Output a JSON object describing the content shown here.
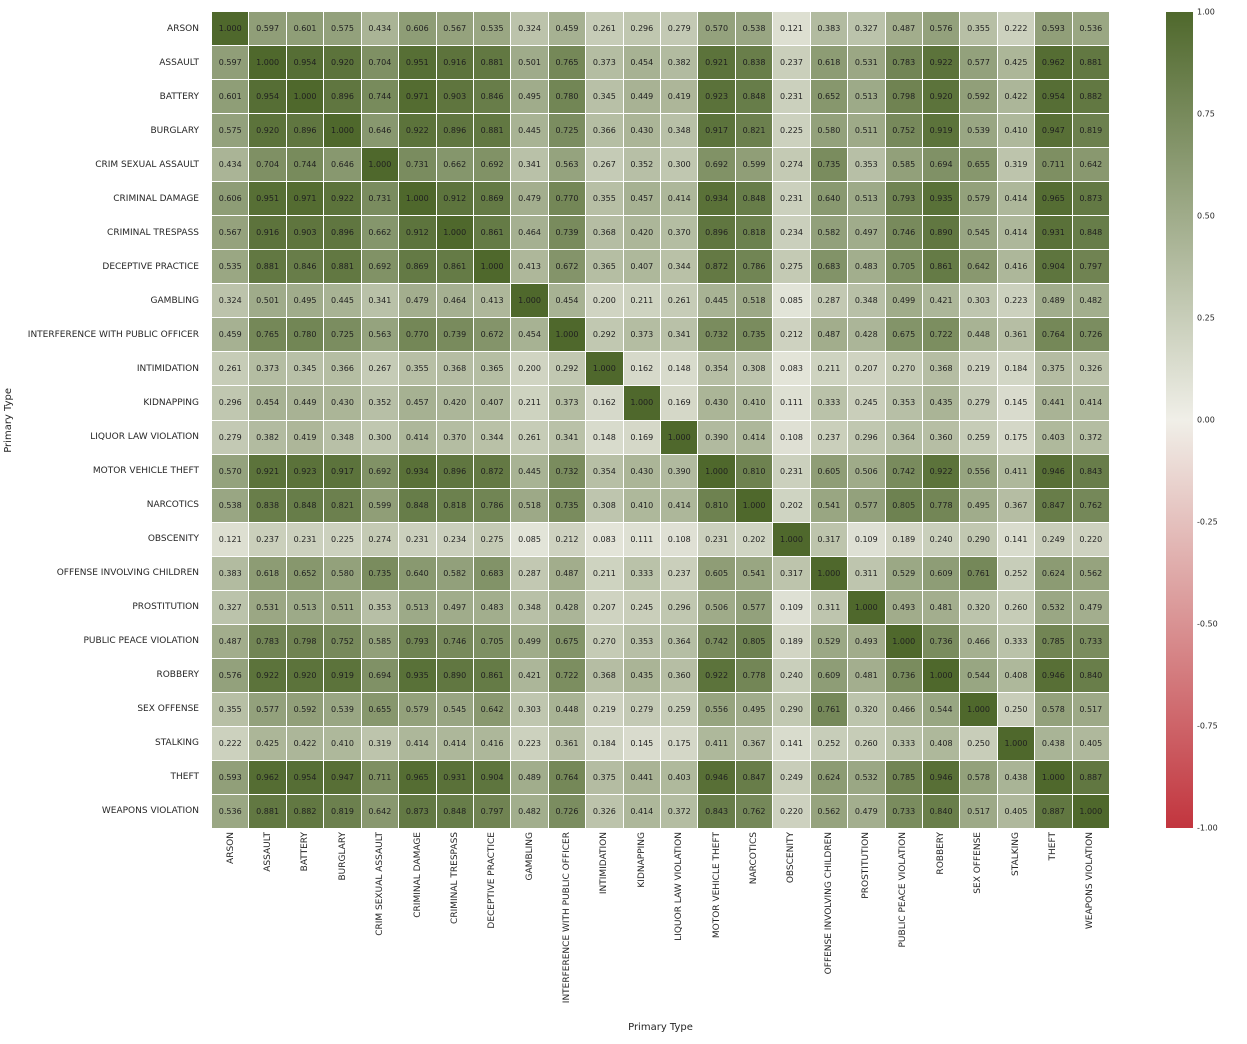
{
  "chart_data": {
    "type": "heatmap",
    "title": "",
    "xlabel": "Primary Type",
    "ylabel": "Primary Type",
    "vmin": -1.0,
    "vmax": 1.0,
    "legend_position": "right-colorbar",
    "grid": false,
    "colors": {
      "positive": "#4f682c",
      "mid": "#f0efe8",
      "negative": "#c2353e"
    },
    "colorbar": {
      "ticks": [
        "1.00",
        "0.75",
        "0.50",
        "0.25",
        "0.00",
        "-0.25",
        "-0.50",
        "-0.75",
        "-1.00"
      ]
    },
    "categories": [
      "ARSON",
      "ASSAULT",
      "BATTERY",
      "BURGLARY",
      "CRIM SEXUAL ASSAULT",
      "CRIMINAL DAMAGE",
      "CRIMINAL TRESPASS",
      "DECEPTIVE PRACTICE",
      "GAMBLING",
      "INTERFERENCE WITH PUBLIC OFFICER",
      "INTIMIDATION",
      "KIDNAPPING",
      "LIQUOR LAW VIOLATION",
      "MOTOR VEHICLE THEFT",
      "NARCOTICS",
      "OBSCENITY",
      "OFFENSE INVOLVING CHILDREN",
      "PROSTITUTION",
      "PUBLIC PEACE VIOLATION",
      "ROBBERY",
      "SEX OFFENSE",
      "STALKING",
      "THEFT",
      "WEAPONS VIOLATION"
    ],
    "matrix": [
      [
        1.0,
        0.597,
        0.601,
        0.575,
        0.434,
        0.606,
        0.567,
        0.535,
        0.324,
        0.459,
        0.261,
        0.296,
        0.279,
        0.57,
        0.538,
        0.121,
        0.383,
        0.327,
        0.487,
        0.576,
        0.355,
        0.222,
        0.593,
        0.536
      ],
      [
        0.597,
        1.0,
        0.954,
        0.92,
        0.704,
        0.951,
        0.916,
        0.881,
        0.501,
        0.765,
        0.373,
        0.454,
        0.382,
        0.921,
        0.838,
        0.237,
        0.618,
        0.531,
        0.783,
        0.922,
        0.577,
        0.425,
        0.962,
        0.881
      ],
      [
        0.601,
        0.954,
        1.0,
        0.896,
        0.744,
        0.971,
        0.903,
        0.846,
        0.495,
        0.78,
        0.345,
        0.449,
        0.419,
        0.923,
        0.848,
        0.231,
        0.652,
        0.513,
        0.798,
        0.92,
        0.592,
        0.422,
        0.954,
        0.882
      ],
      [
        0.575,
        0.92,
        0.896,
        1.0,
        0.646,
        0.922,
        0.896,
        0.881,
        0.445,
        0.725,
        0.366,
        0.43,
        0.348,
        0.917,
        0.821,
        0.225,
        0.58,
        0.511,
        0.752,
        0.919,
        0.539,
        0.41,
        0.947,
        0.819
      ],
      [
        0.434,
        0.704,
        0.744,
        0.646,
        1.0,
        0.731,
        0.662,
        0.692,
        0.341,
        0.563,
        0.267,
        0.352,
        0.3,
        0.692,
        0.599,
        0.274,
        0.735,
        0.353,
        0.585,
        0.694,
        0.655,
        0.319,
        0.711,
        0.642
      ],
      [
        0.606,
        0.951,
        0.971,
        0.922,
        0.731,
        1.0,
        0.912,
        0.869,
        0.479,
        0.77,
        0.355,
        0.457,
        0.414,
        0.934,
        0.848,
        0.231,
        0.64,
        0.513,
        0.793,
        0.935,
        0.579,
        0.414,
        0.965,
        0.873
      ],
      [
        0.567,
        0.916,
        0.903,
        0.896,
        0.662,
        0.912,
        1.0,
        0.861,
        0.464,
        0.739,
        0.368,
        0.42,
        0.37,
        0.896,
        0.818,
        0.234,
        0.582,
        0.497,
        0.746,
        0.89,
        0.545,
        0.414,
        0.931,
        0.848
      ],
      [
        0.535,
        0.881,
        0.846,
        0.881,
        0.692,
        0.869,
        0.861,
        1.0,
        0.413,
        0.672,
        0.365,
        0.407,
        0.344,
        0.872,
        0.786,
        0.275,
        0.683,
        0.483,
        0.705,
        0.861,
        0.642,
        0.416,
        0.904,
        0.797
      ],
      [
        0.324,
        0.501,
        0.495,
        0.445,
        0.341,
        0.479,
        0.464,
        0.413,
        1.0,
        0.454,
        0.2,
        0.211,
        0.261,
        0.445,
        0.518,
        0.085,
        0.287,
        0.348,
        0.499,
        0.421,
        0.303,
        0.223,
        0.489,
        0.482
      ],
      [
        0.459,
        0.765,
        0.78,
        0.725,
        0.563,
        0.77,
        0.739,
        0.672,
        0.454,
        1.0,
        0.292,
        0.373,
        0.341,
        0.732,
        0.735,
        0.212,
        0.487,
        0.428,
        0.675,
        0.722,
        0.448,
        0.361,
        0.764,
        0.726
      ],
      [
        0.261,
        0.373,
        0.345,
        0.366,
        0.267,
        0.355,
        0.368,
        0.365,
        0.2,
        0.292,
        1.0,
        0.162,
        0.148,
        0.354,
        0.308,
        0.083,
        0.211,
        0.207,
        0.27,
        0.368,
        0.219,
        0.184,
        0.375,
        0.326
      ],
      [
        0.296,
        0.454,
        0.449,
        0.43,
        0.352,
        0.457,
        0.42,
        0.407,
        0.211,
        0.373,
        0.162,
        1.0,
        0.169,
        0.43,
        0.41,
        0.111,
        0.333,
        0.245,
        0.353,
        0.435,
        0.279,
        0.145,
        0.441,
        0.414
      ],
      [
        0.279,
        0.382,
        0.419,
        0.348,
        0.3,
        0.414,
        0.37,
        0.344,
        0.261,
        0.341,
        0.148,
        0.169,
        1.0,
        0.39,
        0.414,
        0.108,
        0.237,
        0.296,
        0.364,
        0.36,
        0.259,
        0.175,
        0.403,
        0.372
      ],
      [
        0.57,
        0.921,
        0.923,
        0.917,
        0.692,
        0.934,
        0.896,
        0.872,
        0.445,
        0.732,
        0.354,
        0.43,
        0.39,
        1.0,
        0.81,
        0.231,
        0.605,
        0.506,
        0.742,
        0.922,
        0.556,
        0.411,
        0.946,
        0.843
      ],
      [
        0.538,
        0.838,
        0.848,
        0.821,
        0.599,
        0.848,
        0.818,
        0.786,
        0.518,
        0.735,
        0.308,
        0.41,
        0.414,
        0.81,
        1.0,
        0.202,
        0.541,
        0.577,
        0.805,
        0.778,
        0.495,
        0.367,
        0.847,
        0.762
      ],
      [
        0.121,
        0.237,
        0.231,
        0.225,
        0.274,
        0.231,
        0.234,
        0.275,
        0.085,
        0.212,
        0.083,
        0.111,
        0.108,
        0.231,
        0.202,
        1.0,
        0.317,
        0.109,
        0.189,
        0.24,
        0.29,
        0.141,
        0.249,
        0.22
      ],
      [
        0.383,
        0.618,
        0.652,
        0.58,
        0.735,
        0.64,
        0.582,
        0.683,
        0.287,
        0.487,
        0.211,
        0.333,
        0.237,
        0.605,
        0.541,
        0.317,
        1.0,
        0.311,
        0.529,
        0.609,
        0.761,
        0.252,
        0.624,
        0.562
      ],
      [
        0.327,
        0.531,
        0.513,
        0.511,
        0.353,
        0.513,
        0.497,
        0.483,
        0.348,
        0.428,
        0.207,
        0.245,
        0.296,
        0.506,
        0.577,
        0.109,
        0.311,
        1.0,
        0.493,
        0.481,
        0.32,
        0.26,
        0.532,
        0.479
      ],
      [
        0.487,
        0.783,
        0.798,
        0.752,
        0.585,
        0.793,
        0.746,
        0.705,
        0.499,
        0.675,
        0.27,
        0.353,
        0.364,
        0.742,
        0.805,
        0.189,
        0.529,
        0.493,
        1.0,
        0.736,
        0.466,
        0.333,
        0.785,
        0.733
      ],
      [
        0.576,
        0.922,
        0.92,
        0.919,
        0.694,
        0.935,
        0.89,
        0.861,
        0.421,
        0.722,
        0.368,
        0.435,
        0.36,
        0.922,
        0.778,
        0.24,
        0.609,
        0.481,
        0.736,
        1.0,
        0.544,
        0.408,
        0.946,
        0.84
      ],
      [
        0.355,
        0.577,
        0.592,
        0.539,
        0.655,
        0.579,
        0.545,
        0.642,
        0.303,
        0.448,
        0.219,
        0.279,
        0.259,
        0.556,
        0.495,
        0.29,
        0.761,
        0.32,
        0.466,
        0.544,
        1.0,
        0.25,
        0.578,
        0.517
      ],
      [
        0.222,
        0.425,
        0.422,
        0.41,
        0.319,
        0.414,
        0.414,
        0.416,
        0.223,
        0.361,
        0.184,
        0.145,
        0.175,
        0.411,
        0.367,
        0.141,
        0.252,
        0.26,
        0.333,
        0.408,
        0.25,
        1.0,
        0.438,
        0.405
      ],
      [
        0.593,
        0.962,
        0.954,
        0.947,
        0.711,
        0.965,
        0.931,
        0.904,
        0.489,
        0.764,
        0.375,
        0.441,
        0.403,
        0.946,
        0.847,
        0.249,
        0.624,
        0.532,
        0.785,
        0.946,
        0.578,
        0.438,
        1.0,
        0.887
      ],
      [
        0.536,
        0.881,
        0.882,
        0.819,
        0.642,
        0.873,
        0.848,
        0.797,
        0.482,
        0.726,
        0.326,
        0.414,
        0.372,
        0.843,
        0.762,
        0.22,
        0.562,
        0.479,
        0.733,
        0.84,
        0.517,
        0.405,
        0.887,
        1.0
      ]
    ]
  }
}
